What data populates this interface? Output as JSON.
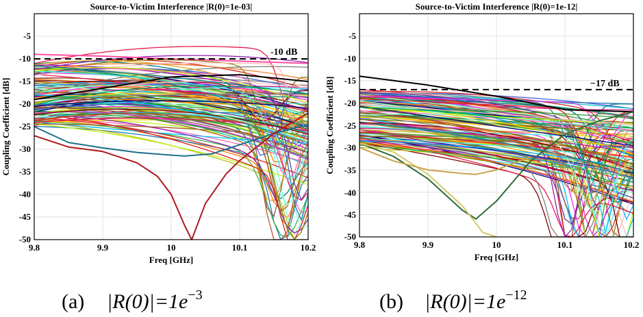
{
  "chart_data": [
    {
      "type": "line",
      "title": "Source-to-Victim Interference |R(0)=1e-03|",
      "xlabel": "Freq [GHz]",
      "ylabel": "Coupling Coefficient [dB]",
      "xlim": [
        9.8,
        10.2
      ],
      "ylim": [
        -50,
        0
      ],
      "xticks": [
        "9.8",
        "9.9",
        "10",
        "10.1",
        "10.2"
      ],
      "yticks": [
        "-5",
        "-10",
        "-15",
        "-20",
        "-25",
        "-30",
        "-35",
        "-40",
        "-45",
        "-50"
      ],
      "grid": true,
      "threshold": {
        "value": -10,
        "label": "-10 dB"
      },
      "highlighted_series": [
        {
          "color": "#ff4fa0",
          "x": [
            9.8,
            9.9,
            10.0,
            10.1,
            10.2
          ],
          "y": [
            -9,
            -9.4,
            -10,
            -10.5,
            -11
          ]
        },
        {
          "color": "#1c6f8a",
          "x": [
            9.8,
            9.85,
            9.9,
            9.95,
            10.0,
            10.02,
            10.06,
            10.1,
            10.15,
            10.2
          ],
          "y": [
            -25,
            -28.5,
            -29.7,
            -30.7,
            -31.3,
            -31.5,
            -31,
            -29,
            -26.5,
            -24.5
          ]
        },
        {
          "color": "#b0181f",
          "x": [
            9.8,
            9.85,
            9.9,
            9.95,
            9.98,
            10.0,
            10.02,
            10.03,
            10.05,
            10.08,
            10.1,
            10.15,
            10.2
          ],
          "y": [
            -27,
            -29.5,
            -30.5,
            -33,
            -36,
            -40,
            -47,
            -50,
            -42,
            -35.5,
            -32.5,
            -26.5,
            -22
          ]
        },
        {
          "color": "#000000",
          "x": [
            9.8,
            9.9,
            10.0,
            10.1,
            10.2
          ],
          "y": [
            -19,
            -16.5,
            -14,
            -13.5,
            -15
          ]
        }
      ]
    },
    {
      "type": "line",
      "title": "Source-to-Victim Interference |R(0)=1e-12|",
      "xlabel": "Freq [GHz]",
      "ylabel": "Coupling Coefficient [dB]",
      "xlim": [
        9.8,
        10.2
      ],
      "ylim": [
        -50,
        0
      ],
      "xticks": [
        "9.8",
        "9.9",
        "10",
        "10.1",
        "10.2"
      ],
      "yticks": [
        "-5",
        "-10",
        "-15",
        "-20",
        "-25",
        "-30",
        "-35",
        "-40",
        "-45",
        "-50"
      ],
      "grid": true,
      "threshold": {
        "value": -17,
        "label": "−17 dB"
      },
      "highlighted_series": [
        {
          "color": "#000000",
          "x": [
            9.8,
            9.9,
            10.0,
            10.1,
            10.2
          ],
          "y": [
            -14,
            -16,
            -18.5,
            -21.5,
            -22
          ]
        },
        {
          "color": "#2f6b3a",
          "x": [
            9.8,
            9.85,
            9.9,
            9.95,
            9.97,
            10.0,
            10.05,
            10.1,
            10.15,
            10.2
          ],
          "y": [
            -29,
            -32,
            -37,
            -44,
            -46,
            -42,
            -33,
            -27,
            -24,
            -22
          ]
        },
        {
          "color": "#d7c96a",
          "x": [
            9.8,
            9.85,
            9.9,
            9.95,
            9.98,
            10.0
          ],
          "y": [
            -29,
            -31,
            -36,
            -43,
            -49,
            -50
          ]
        },
        {
          "color": "#c9a24a",
          "x": [
            9.8,
            9.85,
            9.9,
            9.95,
            9.97,
            10.0,
            10.05
          ],
          "y": [
            -30,
            -33,
            -35,
            -35.8,
            -36,
            -35,
            -32
          ]
        }
      ]
    }
  ],
  "captions": [
    {
      "prefix": "(a)",
      "math": "|R(0)|=1",
      "base": "e",
      "exp": "−3"
    },
    {
      "prefix": "(b)",
      "math": "|R(0)|=1",
      "base": "e",
      "exp": "−12"
    }
  ]
}
